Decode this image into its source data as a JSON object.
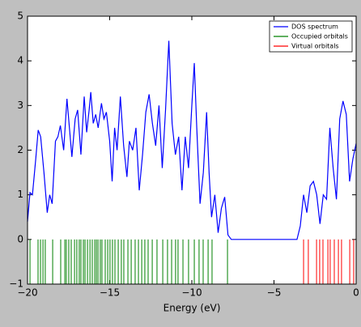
{
  "chart_data": {
    "type": "line",
    "xlabel": "Energy (eV)",
    "xlim": [
      -20,
      0
    ],
    "ylim": [
      -1,
      5
    ],
    "xticks": [
      {
        "value": -20,
        "label": "−20"
      },
      {
        "value": -15,
        "label": "−15"
      },
      {
        "value": -10,
        "label": "−10"
      },
      {
        "value": -5,
        "label": "−5"
      },
      0
    ],
    "yticks": [
      {
        "value": -1,
        "label": "−1"
      },
      0,
      1,
      2,
      3,
      4,
      5
    ],
    "legend": "upper right",
    "series": [
      {
        "name": "DOS spectrum",
        "color": "#0000ff",
        "x": [
          -20,
          -19.85,
          -19.7,
          -19.5,
          -19.35,
          -19.2,
          -19.0,
          -18.8,
          -18.65,
          -18.5,
          -18.3,
          -18.15,
          -18.0,
          -17.8,
          -17.6,
          -17.45,
          -17.3,
          -17.1,
          -16.95,
          -16.75,
          -16.55,
          -16.4,
          -16.25,
          -16.15,
          -16.0,
          -15.85,
          -15.7,
          -15.5,
          -15.35,
          -15.2,
          -15.0,
          -14.85,
          -14.7,
          -14.55,
          -14.35,
          -14.15,
          -13.95,
          -13.8,
          -13.6,
          -13.4,
          -13.2,
          -13.0,
          -12.8,
          -12.6,
          -12.4,
          -12.2,
          -12.0,
          -11.8,
          -11.6,
          -11.4,
          -11.2,
          -11.0,
          -10.8,
          -10.6,
          -10.4,
          -10.2,
          -10.0,
          -9.85,
          -9.7,
          -9.5,
          -9.3,
          -9.1,
          -8.95,
          -8.8,
          -8.6,
          -8.4,
          -8.2,
          -8.0,
          -7.8,
          -7.6,
          -3.6,
          -3.4,
          -3.2,
          -3.0,
          -2.8,
          -2.6,
          -2.4,
          -2.2,
          -2.0,
          -1.8,
          -1.6,
          -1.4,
          -1.2,
          -1.0,
          -0.8,
          -0.6,
          -0.4,
          -0.2,
          0
        ],
        "values": [
          0.4,
          1.05,
          1.0,
          1.8,
          2.45,
          2.3,
          1.5,
          0.6,
          1.0,
          0.8,
          2.2,
          2.3,
          2.55,
          2.0,
          3.15,
          2.5,
          1.85,
          2.7,
          2.9,
          1.9,
          3.2,
          2.4,
          2.9,
          3.3,
          2.6,
          2.8,
          2.5,
          3.05,
          2.7,
          2.85,
          2.2,
          1.3,
          2.5,
          2.0,
          3.2,
          2.1,
          1.4,
          2.2,
          2.0,
          2.5,
          1.1,
          1.9,
          2.85,
          3.25,
          2.6,
          2.1,
          3.0,
          1.6,
          2.9,
          4.45,
          2.6,
          1.9,
          2.3,
          1.1,
          2.3,
          1.6,
          3.0,
          3.95,
          2.5,
          0.8,
          1.5,
          2.85,
          1.5,
          0.5,
          1.0,
          0.15,
          0.7,
          0.95,
          0.1,
          0,
          0,
          0.3,
          1.0,
          0.6,
          1.2,
          1.3,
          1.0,
          0.35,
          1.0,
          0.9,
          2.5,
          1.6,
          0.9,
          2.7,
          3.1,
          2.8,
          1.3,
          1.8,
          2.15
        ]
      },
      {
        "name": "Occupied orbitals",
        "color": "#008000",
        "span": [
          -1,
          0
        ],
        "x": [
          -19.85,
          -19.36,
          -19.21,
          -19.06,
          -18.92,
          -18.47,
          -17.98,
          -17.73,
          -17.64,
          -17.49,
          -17.34,
          -17.14,
          -17.0,
          -16.85,
          -16.75,
          -16.6,
          -16.5,
          -16.35,
          -16.2,
          -16.06,
          -15.91,
          -15.81,
          -15.71,
          -15.57,
          -15.47,
          -15.27,
          -15.12,
          -14.98,
          -14.83,
          -14.68,
          -14.48,
          -14.29,
          -14.14,
          -13.89,
          -13.69,
          -13.45,
          -13.25,
          -13.05,
          -12.86,
          -12.66,
          -12.41,
          -12.12,
          -11.77,
          -11.48,
          -11.23,
          -10.99,
          -10.84,
          -10.54,
          -10.2,
          -9.85,
          -9.56,
          -9.31,
          -9.01,
          -8.77,
          -7.83
        ]
      },
      {
        "name": "Virtual orbitals",
        "color": "#ff0000",
        "span": [
          -1,
          0
        ],
        "x": [
          -3.2,
          -2.91,
          -2.41,
          -2.22,
          -2.02,
          -1.72,
          -1.58,
          -1.33,
          -1.08,
          -0.89,
          -0.39,
          -0.15,
          0
        ]
      }
    ]
  }
}
